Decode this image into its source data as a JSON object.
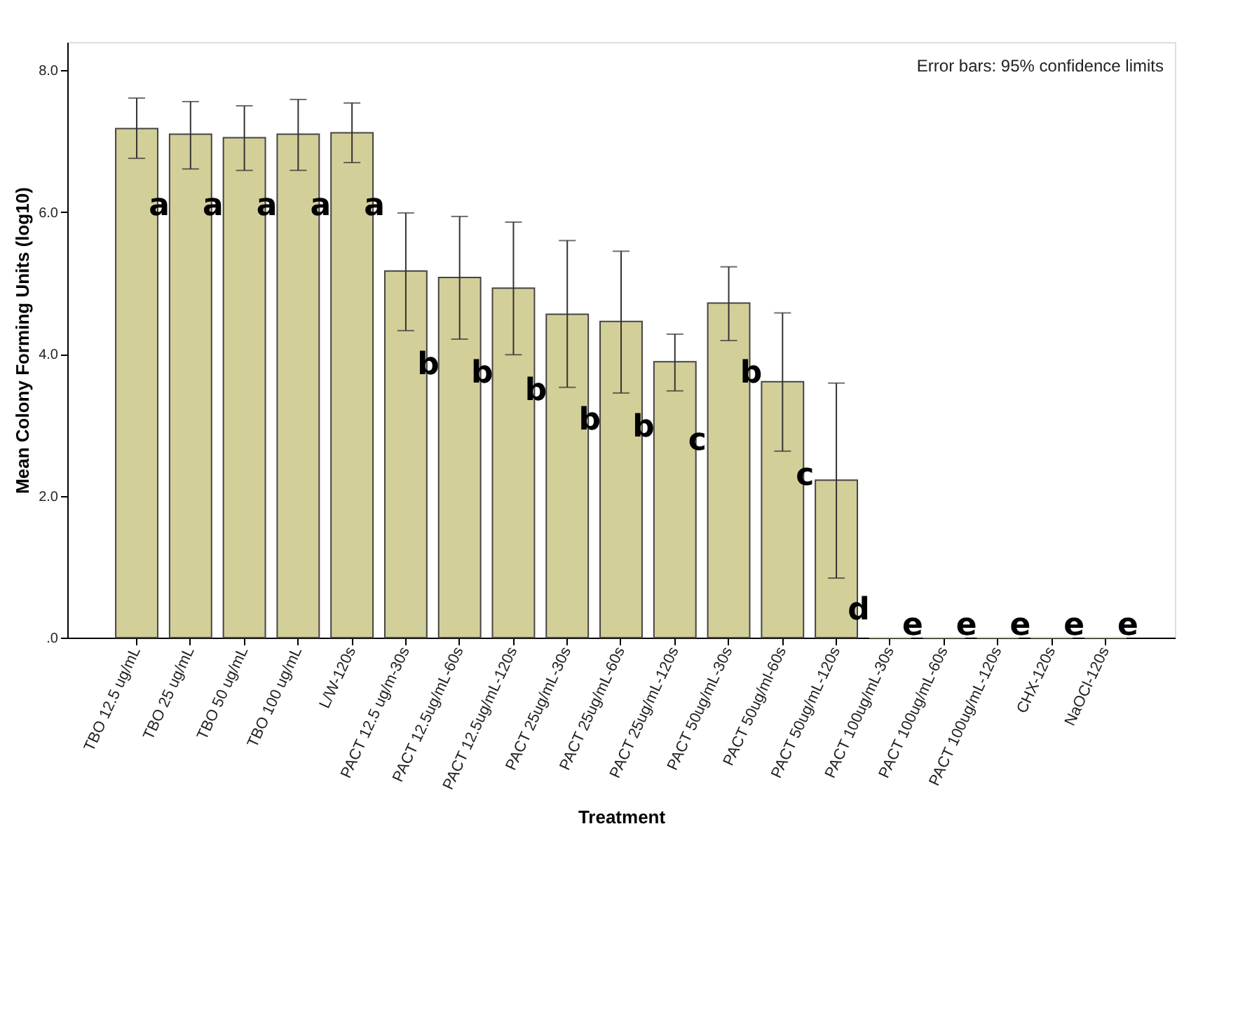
{
  "chart_data": {
    "type": "bar",
    "xlabel": "Treatment",
    "ylabel": "Mean Colony Forming Units (log10)",
    "categories": [
      "TBO 12.5 ug/mL",
      "TBO 25 ug/mL",
      "TBO 50 ug/mL",
      "TBO 100 ug/mL",
      "L/W-120s",
      "PACT 12.5 ug/m-30s",
      "PACT 12.5ug/mL-60s",
      "PACT 12.5ug/mL-120s",
      "PACT 25ug/mL-30s",
      "PACT 25ug/mL-60s",
      "PACT 25ug/mL-120s",
      "PACT 50ug/mL-30s",
      "PACT 50ug/ml-60s",
      "PACT 50ug/mL-120s",
      "PACT 100ug/mL-30s",
      "PACT 100ug/mL-60s",
      "PACT 100ug/mL-120s",
      "CHX-120s",
      "NaOCl-120s"
    ],
    "values": [
      7.18,
      7.1,
      7.05,
      7.1,
      7.12,
      5.17,
      5.08,
      4.93,
      4.56,
      4.46,
      3.89,
      4.72,
      3.61,
      2.22,
      0,
      0,
      0,
      0,
      0
    ],
    "errors": [
      [
        6.76,
        7.61
      ],
      [
        6.61,
        7.56
      ],
      [
        6.59,
        7.5
      ],
      [
        6.59,
        7.59
      ],
      [
        6.7,
        7.54
      ],
      [
        4.33,
        5.99
      ],
      [
        4.21,
        5.94
      ],
      [
        3.99,
        5.86
      ],
      [
        3.53,
        5.6
      ],
      [
        3.45,
        5.45
      ],
      [
        3.48,
        4.28
      ],
      [
        4.19,
        5.23
      ],
      [
        2.63,
        4.58
      ],
      [
        0.84,
        3.59
      ],
      null,
      null,
      null,
      null,
      null
    ],
    "color": "#d3cf99",
    "ylim": [
      0,
      8.4
    ],
    "yticks": [
      {
        "value": 0,
        "label": ".0"
      },
      {
        "value": 2,
        "label": "2.0"
      },
      {
        "value": 4,
        "label": "4.0"
      },
      {
        "value": 6,
        "label": "6.0"
      },
      {
        "value": 8,
        "label": "8.0"
      }
    ],
    "grid": false,
    "annotations": [
      "Error bars: 95% confidence limits",
      {
        "text": "a",
        "x": "TBO 12.5 ug/mL",
        "y": 5.92
      },
      {
        "text": "a",
        "x": "TBO 25 ug/mL",
        "y": 5.92
      },
      {
        "text": "a",
        "x": "TBO 50 ug/mL",
        "y": 5.92
      },
      {
        "text": "a",
        "x": "TBO 100 ug/mL",
        "y": 5.92
      },
      {
        "text": "a",
        "x": "L/W-120s",
        "y": 5.92
      },
      {
        "text": "b",
        "x": "PACT 12.5 ug/m-30s",
        "y": 3.68
      },
      {
        "text": "b",
        "x": "PACT 12.5ug/mL-60s",
        "y": 3.56
      },
      {
        "text": "b",
        "x": "PACT 12.5ug/mL-120s",
        "y": 3.31
      },
      {
        "text": "b",
        "x": "PACT 25ug/mL-30s",
        "y": 2.9
      },
      {
        "text": "b",
        "x": "PACT 25ug/mL-60s",
        "y": 2.8
      },
      {
        "text": "c",
        "x": "PACT 25ug/mL-120s",
        "y": 2.61
      },
      {
        "text": "b",
        "x": "PACT 50ug/mL-30s",
        "y": 3.56
      },
      {
        "text": "c",
        "x": "PACT 50ug/ml-60s",
        "y": 2.11
      },
      {
        "text": "d",
        "x": "PACT 50ug/mL-120s",
        "y": 0.22
      },
      {
        "text": "e",
        "x": "PACT 100ug/mL-30s",
        "y": 0
      },
      {
        "text": "e",
        "x": "PACT 100ug/mL-60s",
        "y": 0
      },
      {
        "text": "e",
        "x": "PACT 100ug/mL-120s",
        "y": 0
      },
      {
        "text": "e",
        "x": "CHX-120s",
        "y": 0
      },
      {
        "text": "e",
        "x": "NaOCl-120s",
        "y": 0
      }
    ]
  }
}
